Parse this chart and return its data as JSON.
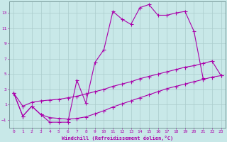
{
  "bg_color": "#c8e8e8",
  "line_color": "#aa00aa",
  "grid_color": "#aacccc",
  "xlabel": "Windchill (Refroidissement éolien,°C)",
  "xlim": [
    -0.5,
    23.5
  ],
  "ylim": [
    -2.0,
    14.5
  ],
  "yticks": [
    -1,
    1,
    3,
    5,
    7,
    9,
    11,
    13
  ],
  "xticks": [
    0,
    1,
    2,
    3,
    4,
    5,
    6,
    7,
    8,
    9,
    10,
    11,
    12,
    13,
    14,
    15,
    16,
    17,
    18,
    19,
    20,
    21,
    22,
    23
  ],
  "series": [
    {
      "x": [
        0,
        1,
        2,
        3,
        4,
        5,
        6,
        7,
        8,
        9,
        10,
        11,
        12,
        13,
        14,
        15,
        16,
        17,
        18,
        19,
        20,
        21
      ],
      "y": [
        2.5,
        -0.5,
        0.8,
        -0.3,
        -1.3,
        -1.3,
        -1.3,
        4.2,
        1.2,
        6.5,
        8.2,
        13.2,
        12.2,
        11.5,
        13.7,
        14.1,
        12.7,
        12.7,
        13.0,
        13.2,
        10.6,
        4.5
      ]
    },
    {
      "x": [
        0,
        1,
        2,
        3,
        4,
        5,
        6,
        7,
        8,
        9,
        10,
        11,
        12,
        13,
        14,
        15,
        16,
        17,
        18,
        19,
        20,
        21,
        22,
        23
      ],
      "y": [
        2.5,
        -0.5,
        0.8,
        -0.3,
        -0.7,
        -0.8,
        -0.9,
        -0.8,
        -0.6,
        -0.2,
        0.2,
        0.7,
        1.1,
        1.5,
        1.9,
        2.3,
        2.7,
        3.1,
        3.4,
        3.7,
        4.0,
        4.3,
        4.6,
        4.8
      ]
    },
    {
      "x": [
        0,
        1,
        2,
        3,
        4,
        5,
        6,
        7,
        8,
        9,
        10,
        11,
        12,
        13,
        14,
        15,
        16,
        17,
        18,
        19,
        20,
        21,
        22,
        23
      ],
      "y": [
        2.5,
        0.8,
        1.3,
        1.5,
        1.6,
        1.7,
        1.9,
        2.1,
        2.4,
        2.7,
        3.0,
        3.4,
        3.7,
        4.0,
        4.4,
        4.7,
        5.0,
        5.3,
        5.6,
        5.9,
        6.1,
        6.4,
        6.7,
        4.8
      ]
    }
  ]
}
